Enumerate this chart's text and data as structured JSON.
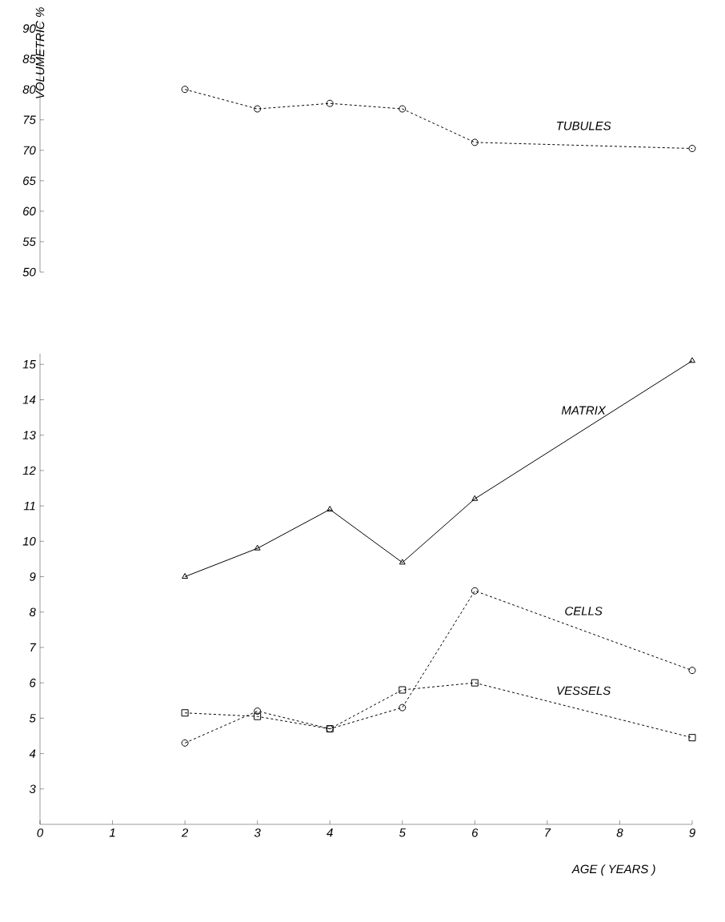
{
  "chart_data": [
    {
      "type": "line",
      "ylabel": "VOLUMETRIC %",
      "xlim": [
        0,
        9
      ],
      "ylim": [
        50,
        91
      ],
      "yticks": [
        50,
        55,
        60,
        65,
        70,
        75,
        80,
        85,
        90
      ],
      "tick_labels": "y",
      "legend": false,
      "grid": false,
      "x": [
        2,
        3,
        4,
        5,
        6,
        9
      ],
      "series": [
        {
          "name": "TUBULES",
          "color": "#000000",
          "marker": "circle",
          "line_style": "dashed",
          "values": [
            80,
            76.8,
            77.7,
            76.8,
            71.3,
            70.3
          ]
        }
      ]
    },
    {
      "type": "line",
      "xlabel": "AGE ( YEARS )",
      "xlim": [
        0,
        9
      ],
      "ylim": [
        2,
        15.3
      ],
      "xticks": [
        0,
        1,
        2,
        3,
        4,
        5,
        6,
        7,
        8,
        9
      ],
      "yticks": [
        3,
        4,
        5,
        6,
        7,
        8,
        9,
        10,
        11,
        12,
        13,
        14,
        15
      ],
      "legend": false,
      "grid": false,
      "x": [
        2,
        3,
        4,
        5,
        6,
        9
      ],
      "series": [
        {
          "name": "MATRIX",
          "color": "#000000",
          "marker": "triangle",
          "line_style": "solid",
          "values": [
            9.0,
            9.8,
            10.9,
            9.4,
            11.2,
            15.1
          ]
        },
        {
          "name": "CELLS",
          "color": "#000000",
          "marker": "circle",
          "line_style": "dashed",
          "values": [
            4.3,
            5.2,
            4.7,
            5.3,
            8.6,
            6.35
          ]
        },
        {
          "name": "VESSELS",
          "color": "#000000",
          "marker": "square",
          "line_style": "dashed",
          "values": [
            5.15,
            5.05,
            4.7,
            5.8,
            6.0,
            4.45
          ]
        }
      ]
    }
  ]
}
